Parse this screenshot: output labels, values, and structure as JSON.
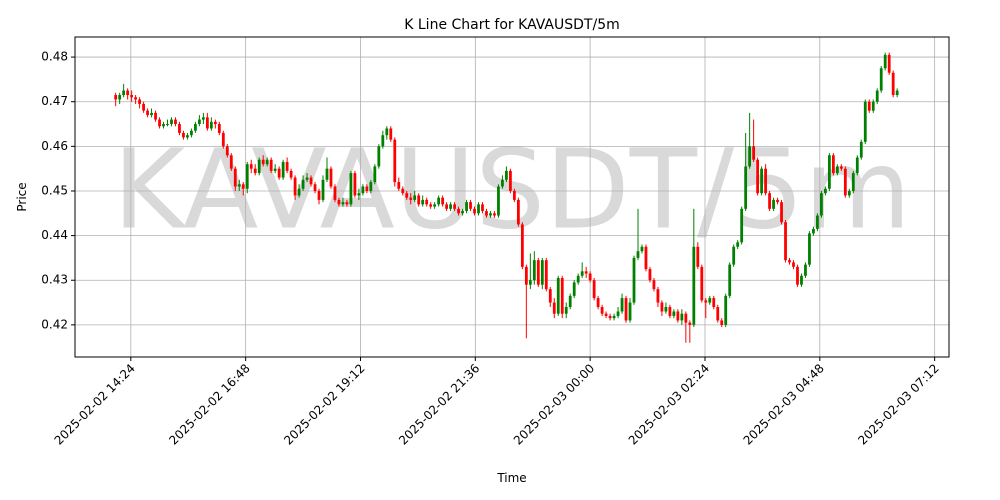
{
  "chart_data": {
    "type": "candlestick",
    "title": "K Line Chart for KAVAUSDT/5m",
    "watermark": "KAVAUSDT/5m",
    "x_label": "Time",
    "y_label": "Price",
    "grid": true,
    "up_color": "#008000",
    "down_color": "#ff0000",
    "xlim": [
      "2025-02-02 13:14",
      "2025-02-03 07:30"
    ],
    "xticks": [
      "2025-02-02 14:24",
      "2025-02-02 16:48",
      "2025-02-02 19:12",
      "2025-02-02 21:36",
      "2025-02-03 00:00",
      "2025-02-03 02:24",
      "2025-02-03 04:48",
      "2025-02-03 07:12"
    ],
    "ylim": [
      0.4128,
      0.4845
    ],
    "yticks": [
      0.42,
      0.43,
      0.44,
      0.45,
      0.46,
      0.47,
      0.48
    ],
    "x": [
      "2025-02-02 14:05",
      "2025-02-02 14:10",
      "2025-02-02 14:15",
      "2025-02-02 14:20",
      "2025-02-02 14:25",
      "2025-02-02 14:30",
      "2025-02-02 14:35",
      "2025-02-02 14:40",
      "2025-02-02 14:45",
      "2025-02-02 14:50",
      "2025-02-02 14:55",
      "2025-02-02 15:00",
      "2025-02-02 15:05",
      "2025-02-02 15:10",
      "2025-02-02 15:15",
      "2025-02-02 15:20",
      "2025-02-02 15:25",
      "2025-02-02 15:30",
      "2025-02-02 15:35",
      "2025-02-02 15:40",
      "2025-02-02 15:45",
      "2025-02-02 15:50",
      "2025-02-02 15:55",
      "2025-02-02 16:00",
      "2025-02-02 16:05",
      "2025-02-02 16:10",
      "2025-02-02 16:15",
      "2025-02-02 16:20",
      "2025-02-02 16:25",
      "2025-02-02 16:30",
      "2025-02-02 16:35",
      "2025-02-02 16:40",
      "2025-02-02 16:45",
      "2025-02-02 16:50",
      "2025-02-02 16:55",
      "2025-02-02 17:00",
      "2025-02-02 17:05",
      "2025-02-02 17:10",
      "2025-02-02 17:15",
      "2025-02-02 17:20",
      "2025-02-02 17:25",
      "2025-02-02 17:30",
      "2025-02-02 17:35",
      "2025-02-02 17:40",
      "2025-02-02 17:45",
      "2025-02-02 17:50",
      "2025-02-02 17:55",
      "2025-02-02 18:00",
      "2025-02-02 18:05",
      "2025-02-02 18:10",
      "2025-02-02 18:15",
      "2025-02-02 18:20",
      "2025-02-02 18:25",
      "2025-02-02 18:30",
      "2025-02-02 18:35",
      "2025-02-02 18:40",
      "2025-02-02 18:45",
      "2025-02-02 18:50",
      "2025-02-02 18:55",
      "2025-02-02 19:00",
      "2025-02-02 19:05",
      "2025-02-02 19:10",
      "2025-02-02 19:15",
      "2025-02-02 19:20",
      "2025-02-02 19:25",
      "2025-02-02 19:30",
      "2025-02-02 19:35",
      "2025-02-02 19:40",
      "2025-02-02 19:45",
      "2025-02-02 19:50",
      "2025-02-02 19:55",
      "2025-02-02 20:00",
      "2025-02-02 20:05",
      "2025-02-02 20:10",
      "2025-02-02 20:15",
      "2025-02-02 20:20",
      "2025-02-02 20:25",
      "2025-02-02 20:30",
      "2025-02-02 20:35",
      "2025-02-02 20:40",
      "2025-02-02 20:45",
      "2025-02-02 20:50",
      "2025-02-02 20:55",
      "2025-02-02 21:00",
      "2025-02-02 21:05",
      "2025-02-02 21:10",
      "2025-02-02 21:15",
      "2025-02-02 21:20",
      "2025-02-02 21:25",
      "2025-02-02 21:30",
      "2025-02-02 21:35",
      "2025-02-02 21:40",
      "2025-02-02 21:45",
      "2025-02-02 21:50",
      "2025-02-02 21:55",
      "2025-02-02 22:00",
      "2025-02-02 22:05",
      "2025-02-02 22:10",
      "2025-02-02 22:15",
      "2025-02-02 22:20",
      "2025-02-02 22:25",
      "2025-02-02 22:30",
      "2025-02-02 22:35",
      "2025-02-02 22:40",
      "2025-02-02 22:45",
      "2025-02-02 22:50",
      "2025-02-02 22:55",
      "2025-02-02 23:00",
      "2025-02-02 23:05",
      "2025-02-02 23:10",
      "2025-02-02 23:15",
      "2025-02-02 23:20",
      "2025-02-02 23:25",
      "2025-02-02 23:30",
      "2025-02-02 23:35",
      "2025-02-02 23:40",
      "2025-02-02 23:45",
      "2025-02-02 23:50",
      "2025-02-02 23:55",
      "2025-02-03 00:00",
      "2025-02-03 00:05",
      "2025-02-03 00:10",
      "2025-02-03 00:15",
      "2025-02-03 00:20",
      "2025-02-03 00:25",
      "2025-02-03 00:30",
      "2025-02-03 00:35",
      "2025-02-03 00:40",
      "2025-02-03 00:45",
      "2025-02-03 00:50",
      "2025-02-03 00:55",
      "2025-02-03 01:00",
      "2025-02-03 01:05",
      "2025-02-03 01:10",
      "2025-02-03 01:15",
      "2025-02-03 01:20",
      "2025-02-03 01:25",
      "2025-02-03 01:30",
      "2025-02-03 01:35",
      "2025-02-03 01:40",
      "2025-02-03 01:45",
      "2025-02-03 01:50",
      "2025-02-03 01:55",
      "2025-02-03 02:00",
      "2025-02-03 02:05",
      "2025-02-03 02:10",
      "2025-02-03 02:15",
      "2025-02-03 02:20",
      "2025-02-03 02:25",
      "2025-02-03 02:30",
      "2025-02-03 02:35",
      "2025-02-03 02:40",
      "2025-02-03 02:45",
      "2025-02-03 02:50",
      "2025-02-03 02:55",
      "2025-02-03 03:00",
      "2025-02-03 03:05",
      "2025-02-03 03:10",
      "2025-02-03 03:15",
      "2025-02-03 03:20",
      "2025-02-03 03:25",
      "2025-02-03 03:30",
      "2025-02-03 03:35",
      "2025-02-03 03:40",
      "2025-02-03 03:45",
      "2025-02-03 03:50",
      "2025-02-03 03:55",
      "2025-02-03 04:00",
      "2025-02-03 04:05",
      "2025-02-03 04:10",
      "2025-02-03 04:15",
      "2025-02-03 04:20",
      "2025-02-03 04:25",
      "2025-02-03 04:30",
      "2025-02-03 04:35",
      "2025-02-03 04:40",
      "2025-02-03 04:45",
      "2025-02-03 04:50",
      "2025-02-03 04:55",
      "2025-02-03 05:00",
      "2025-02-03 05:05",
      "2025-02-03 05:10",
      "2025-02-03 05:15",
      "2025-02-03 05:20",
      "2025-02-03 05:25",
      "2025-02-03 05:30",
      "2025-02-03 05:35",
      "2025-02-03 05:40",
      "2025-02-03 05:45",
      "2025-02-03 05:50",
      "2025-02-03 05:55",
      "2025-02-03 06:00",
      "2025-02-03 06:05",
      "2025-02-03 06:10",
      "2025-02-03 06:15",
      "2025-02-03 06:20",
      "2025-02-03 06:25"
    ],
    "open": [
      0.4715,
      0.4705,
      0.4715,
      0.4725,
      0.4715,
      0.471,
      0.4705,
      0.4695,
      0.468,
      0.467,
      0.4675,
      0.466,
      0.4645,
      0.465,
      0.465,
      0.466,
      0.465,
      0.463,
      0.462,
      0.4625,
      0.4635,
      0.465,
      0.466,
      0.4665,
      0.464,
      0.4655,
      0.465,
      0.463,
      0.46,
      0.458,
      0.455,
      0.451,
      0.4515,
      0.4505,
      0.456,
      0.455,
      0.454,
      0.457,
      0.456,
      0.457,
      0.4545,
      0.455,
      0.453,
      0.4565,
      0.4545,
      0.453,
      0.449,
      0.4505,
      0.4525,
      0.453,
      0.4515,
      0.45,
      0.448,
      0.4525,
      0.455,
      0.451,
      0.448,
      0.447,
      0.4475,
      0.447,
      0.454,
      0.449,
      0.4495,
      0.451,
      0.45,
      0.452,
      0.4555,
      0.46,
      0.4625,
      0.464,
      0.4615,
      0.452,
      0.4505,
      0.4495,
      0.4485,
      0.448,
      0.449,
      0.447,
      0.448,
      0.447,
      0.4465,
      0.447,
      0.4485,
      0.447,
      0.446,
      0.447,
      0.446,
      0.445,
      0.4455,
      0.4475,
      0.446,
      0.445,
      0.447,
      0.4455,
      0.4445,
      0.445,
      0.4445,
      0.451,
      0.4525,
      0.4545,
      0.45,
      0.448,
      0.4425,
      0.433,
      0.429,
      0.43,
      0.4345,
      0.429,
      0.4345,
      0.428,
      0.425,
      0.4225,
      0.4305,
      0.4225,
      0.424,
      0.4265,
      0.4295,
      0.431,
      0.432,
      0.4315,
      0.43,
      0.426,
      0.424,
      0.4225,
      0.422,
      0.4215,
      0.422,
      0.423,
      0.426,
      0.421,
      0.425,
      0.435,
      0.4365,
      0.4375,
      0.4325,
      0.43,
      0.428,
      0.425,
      0.423,
      0.424,
      0.422,
      0.423,
      0.421,
      0.4225,
      0.4205,
      0.42,
      0.4375,
      0.433,
      0.4255,
      0.425,
      0.426,
      0.424,
      0.421,
      0.42,
      0.4265,
      0.4335,
      0.4375,
      0.4385,
      0.446,
      0.4555,
      0.46,
      0.457,
      0.4495,
      0.455,
      0.4495,
      0.446,
      0.448,
      0.4475,
      0.443,
      0.4345,
      0.434,
      0.433,
      0.429,
      0.431,
      0.4335,
      0.4405,
      0.4415,
      0.4445,
      0.4495,
      0.4505,
      0.458,
      0.454,
      0.4555,
      0.455,
      0.449,
      0.45,
      0.454,
      0.4575,
      0.461,
      0.47,
      0.468,
      0.47,
      0.4725,
      0.4775,
      0.4805,
      0.4765,
      0.4715
    ],
    "high": [
      0.472,
      0.472,
      0.474,
      0.473,
      0.4725,
      0.4715,
      0.471,
      0.47,
      0.4685,
      0.4685,
      0.468,
      0.4665,
      0.4655,
      0.466,
      0.4665,
      0.4665,
      0.4655,
      0.4635,
      0.463,
      0.464,
      0.4655,
      0.467,
      0.4675,
      0.4675,
      0.4665,
      0.466,
      0.4655,
      0.4635,
      0.4605,
      0.4585,
      0.4555,
      0.4525,
      0.452,
      0.4565,
      0.457,
      0.456,
      0.4575,
      0.458,
      0.4575,
      0.4575,
      0.456,
      0.4555,
      0.457,
      0.4575,
      0.455,
      0.4535,
      0.4515,
      0.4535,
      0.454,
      0.4535,
      0.452,
      0.4505,
      0.4535,
      0.4575,
      0.4555,
      0.4515,
      0.4485,
      0.4485,
      0.448,
      0.4545,
      0.4545,
      0.4505,
      0.4515,
      0.4515,
      0.4525,
      0.456,
      0.4605,
      0.4635,
      0.4645,
      0.4645,
      0.462,
      0.453,
      0.451,
      0.45,
      0.4495,
      0.45,
      0.4495,
      0.449,
      0.4485,
      0.4475,
      0.4475,
      0.449,
      0.449,
      0.4475,
      0.4475,
      0.4475,
      0.4465,
      0.446,
      0.448,
      0.448,
      0.4465,
      0.4475,
      0.4475,
      0.446,
      0.4455,
      0.4455,
      0.4515,
      0.4535,
      0.4555,
      0.455,
      0.4505,
      0.4485,
      0.443,
      0.4335,
      0.436,
      0.4365,
      0.435,
      0.435,
      0.435,
      0.4285,
      0.426,
      0.431,
      0.431,
      0.425,
      0.427,
      0.43,
      0.4315,
      0.434,
      0.433,
      0.432,
      0.4305,
      0.4265,
      0.4245,
      0.423,
      0.4225,
      0.4225,
      0.424,
      0.427,
      0.4265,
      0.426,
      0.4355,
      0.446,
      0.438,
      0.438,
      0.433,
      0.4305,
      0.4285,
      0.4255,
      0.425,
      0.4245,
      0.4235,
      0.4235,
      0.4235,
      0.423,
      0.421,
      0.446,
      0.4385,
      0.4335,
      0.426,
      0.4265,
      0.4265,
      0.4245,
      0.4215,
      0.427,
      0.434,
      0.438,
      0.439,
      0.4465,
      0.463,
      0.4675,
      0.466,
      0.4575,
      0.4555,
      0.456,
      0.45,
      0.4485,
      0.4485,
      0.448,
      0.4435,
      0.435,
      0.4345,
      0.4335,
      0.4315,
      0.434,
      0.441,
      0.442,
      0.445,
      0.45,
      0.451,
      0.4585,
      0.4585,
      0.456,
      0.456,
      0.4555,
      0.4505,
      0.4545,
      0.458,
      0.4615,
      0.4705,
      0.4705,
      0.4705,
      0.473,
      0.478,
      0.481,
      0.481,
      0.477,
      0.473
    ],
    "low": [
      0.469,
      0.4695,
      0.471,
      0.4705,
      0.47,
      0.4695,
      0.4685,
      0.4675,
      0.4665,
      0.4665,
      0.4655,
      0.464,
      0.464,
      0.4645,
      0.4645,
      0.4645,
      0.4625,
      0.4615,
      0.4615,
      0.462,
      0.463,
      0.4645,
      0.465,
      0.4635,
      0.4635,
      0.464,
      0.4625,
      0.4595,
      0.4575,
      0.4545,
      0.45,
      0.45,
      0.449,
      0.4495,
      0.454,
      0.4535,
      0.4535,
      0.4555,
      0.4555,
      0.454,
      0.454,
      0.4525,
      0.4525,
      0.454,
      0.4525,
      0.448,
      0.4485,
      0.45,
      0.452,
      0.451,
      0.4495,
      0.447,
      0.4475,
      0.452,
      0.4505,
      0.4475,
      0.4465,
      0.4465,
      0.4465,
      0.4465,
      0.4485,
      0.448,
      0.449,
      0.4495,
      0.4495,
      0.4515,
      0.455,
      0.4595,
      0.4615,
      0.461,
      0.451,
      0.45,
      0.449,
      0.448,
      0.447,
      0.4475,
      0.4465,
      0.4465,
      0.4465,
      0.446,
      0.446,
      0.4465,
      0.4465,
      0.4455,
      0.4455,
      0.4455,
      0.4445,
      0.4445,
      0.445,
      0.4455,
      0.4445,
      0.4445,
      0.445,
      0.444,
      0.444,
      0.444,
      0.444,
      0.4505,
      0.452,
      0.4495,
      0.4475,
      0.442,
      0.4325,
      0.417,
      0.428,
      0.429,
      0.4285,
      0.428,
      0.4275,
      0.424,
      0.4215,
      0.422,
      0.4215,
      0.4215,
      0.4235,
      0.426,
      0.429,
      0.4305,
      0.4305,
      0.4295,
      0.4255,
      0.4235,
      0.422,
      0.4215,
      0.421,
      0.421,
      0.4215,
      0.4225,
      0.4205,
      0.4205,
      0.4245,
      0.4345,
      0.436,
      0.432,
      0.4295,
      0.4275,
      0.424,
      0.422,
      0.4225,
      0.4215,
      0.4215,
      0.4205,
      0.42,
      0.416,
      0.416,
      0.4195,
      0.4325,
      0.425,
      0.4215,
      0.4245,
      0.4235,
      0.4205,
      0.4195,
      0.4195,
      0.426,
      0.433,
      0.437,
      0.438,
      0.4455,
      0.455,
      0.4565,
      0.449,
      0.449,
      0.449,
      0.4455,
      0.4455,
      0.447,
      0.4425,
      0.434,
      0.4335,
      0.4325,
      0.4285,
      0.4285,
      0.4305,
      0.433,
      0.44,
      0.441,
      0.444,
      0.449,
      0.45,
      0.4535,
      0.4535,
      0.4545,
      0.4485,
      0.4485,
      0.4495,
      0.4535,
      0.457,
      0.4605,
      0.4675,
      0.4675,
      0.4695,
      0.472,
      0.477,
      0.476,
      0.471,
      0.471
    ],
    "close": [
      0.4705,
      0.4715,
      0.4725,
      0.4715,
      0.471,
      0.4705,
      0.4695,
      0.468,
      0.467,
      0.4675,
      0.466,
      0.4645,
      0.465,
      0.465,
      0.466,
      0.465,
      0.463,
      0.462,
      0.4625,
      0.4635,
      0.465,
      0.466,
      0.4665,
      0.464,
      0.4655,
      0.465,
      0.463,
      0.46,
      0.458,
      0.455,
      0.451,
      0.4515,
      0.4505,
      0.456,
      0.455,
      0.454,
      0.457,
      0.456,
      0.457,
      0.4545,
      0.455,
      0.453,
      0.4565,
      0.4545,
      0.453,
      0.449,
      0.4505,
      0.4525,
      0.453,
      0.4515,
      0.45,
      0.448,
      0.4525,
      0.455,
      0.451,
      0.448,
      0.447,
      0.4475,
      0.447,
      0.454,
      0.449,
      0.4495,
      0.451,
      0.45,
      0.452,
      0.4555,
      0.46,
      0.4625,
      0.464,
      0.4615,
      0.452,
      0.4505,
      0.4495,
      0.4485,
      0.448,
      0.449,
      0.447,
      0.448,
      0.447,
      0.4465,
      0.447,
      0.4485,
      0.447,
      0.446,
      0.447,
      0.446,
      0.445,
      0.4455,
      0.4475,
      0.446,
      0.445,
      0.447,
      0.4455,
      0.4445,
      0.445,
      0.4445,
      0.451,
      0.4525,
      0.4545,
      0.45,
      0.448,
      0.4425,
      0.433,
      0.429,
      0.43,
      0.4345,
      0.429,
      0.4345,
      0.428,
      0.425,
      0.4225,
      0.4305,
      0.4225,
      0.424,
      0.4265,
      0.4295,
      0.431,
      0.432,
      0.4315,
      0.43,
      0.426,
      0.424,
      0.4225,
      0.422,
      0.4215,
      0.422,
      0.423,
      0.426,
      0.421,
      0.425,
      0.435,
      0.4365,
      0.4375,
      0.4325,
      0.43,
      0.428,
      0.425,
      0.423,
      0.424,
      0.422,
      0.423,
      0.421,
      0.4225,
      0.4205,
      0.42,
      0.4375,
      0.433,
      0.4255,
      0.425,
      0.426,
      0.424,
      0.421,
      0.42,
      0.4265,
      0.4335,
      0.4375,
      0.4385,
      0.446,
      0.4555,
      0.46,
      0.457,
      0.4495,
      0.455,
      0.4495,
      0.446,
      0.448,
      0.4475,
      0.443,
      0.4345,
      0.434,
      0.433,
      0.429,
      0.431,
      0.4335,
      0.4405,
      0.4415,
      0.4445,
      0.4495,
      0.4505,
      0.458,
      0.454,
      0.4555,
      0.455,
      0.449,
      0.45,
      0.454,
      0.4575,
      0.461,
      0.47,
      0.468,
      0.47,
      0.4725,
      0.4775,
      0.4805,
      0.4765,
      0.4715,
      0.4725
    ]
  }
}
